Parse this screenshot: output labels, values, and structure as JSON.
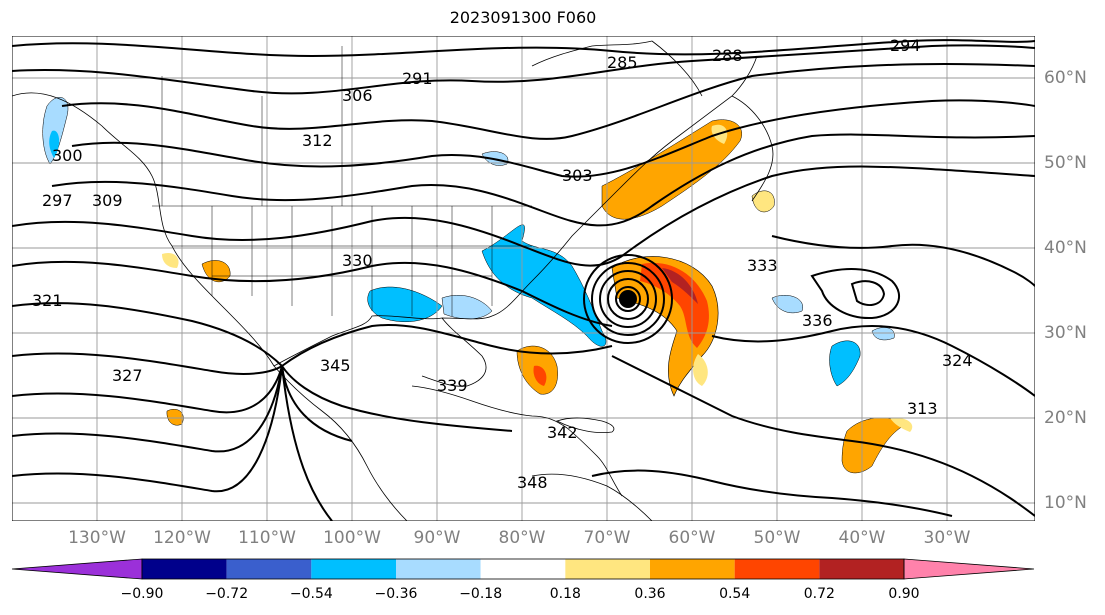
{
  "title": "2023091300 F060",
  "map": {
    "projection": "lat-lon",
    "lon_labels": [
      "130°W",
      "120°W",
      "110°W",
      "100°W",
      "90°W",
      "80°W",
      "70°W",
      "60°W",
      "50°W",
      "40°W",
      "30°W"
    ],
    "lat_labels": [
      "60°N",
      "50°N",
      "40°N",
      "30°N",
      "20°N",
      "10°N"
    ],
    "gridlines": true,
    "coastlines": true,
    "state_borders": true,
    "contour_color": "#000000",
    "contour_labels": [
      "291",
      "294",
      "285",
      "288",
      "303",
      "306",
      "309",
      "312",
      "297",
      "300",
      "321",
      "327",
      "330",
      "333",
      "336",
      "339",
      "342",
      "345",
      "348",
      "324",
      "313"
    ],
    "storm_marker": "filled black circle near 68°W 34°N"
  },
  "colorbar": {
    "colors": [
      "#9b30d9",
      "#00008b",
      "#3a5fcd",
      "#00bfff",
      "#a8dcff",
      "#ffffff",
      "#ffe680",
      "#ffa500",
      "#ff4500",
      "#b22222",
      "#ff82ab"
    ],
    "extend": "both",
    "tick_labels": [
      "−0.90",
      "−0.72",
      "−0.54",
      "−0.36",
      "−0.18",
      "0.18",
      "0.36",
      "0.54",
      "0.72",
      "0.90"
    ]
  }
}
